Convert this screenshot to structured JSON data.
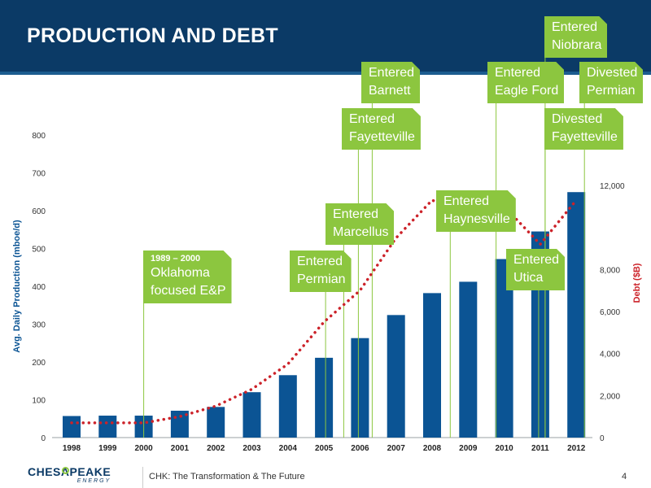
{
  "page": {
    "title": "PRODUCTION AND DEBT",
    "footer": "CHK: The Transformation & The Future",
    "page_number": "4"
  },
  "logo": {
    "name": "CHESAPEAKE",
    "sub": "ENERGY"
  },
  "colors": {
    "header": "#0b3a66",
    "bars": "#0b5494",
    "debt_line": "#cc2229",
    "callout": "#8cc63f",
    "marker_line": "#8cc63f"
  },
  "chart_data": {
    "type": "bar",
    "categories": [
      "1998",
      "1999",
      "2000",
      "2001",
      "2002",
      "2003",
      "2004",
      "2005",
      "2006",
      "2007",
      "2008",
      "2009",
      "2010",
      "2011",
      "2012"
    ],
    "series": [
      {
        "axis": "left",
        "type": "bar",
        "values": [
          57,
          58,
          58,
          71,
          81,
          120,
          165,
          211,
          263,
          324,
          382,
          412,
          472,
          545,
          649
        ]
      },
      {
        "axis": "right",
        "type": "line",
        "style": "dotted",
        "values": [
          700,
          700,
          700,
          1000,
          1500,
          2300,
          3500,
          5500,
          7000,
          9500,
          11300,
          10600,
          11000,
          9200,
          11300
        ]
      }
    ],
    "ylabel": "Avg. Daily Production (mboe/d)",
    "y2label": "Debt ($B)",
    "ylim": [
      0,
      800
    ],
    "y2lim": [
      0,
      14000
    ],
    "yticks": [
      "0",
      "100",
      "200",
      "300",
      "400",
      "500",
      "600",
      "700",
      "800"
    ],
    "y2ticks": [
      "0",
      "2,000",
      "4,000",
      "6,000",
      "8,000",
      "12,000"
    ],
    "grid": false,
    "annotations": [
      {
        "id": "oklahoma",
        "x_year": "2000",
        "header": "1989 – 2000",
        "lines": [
          "Oklahoma",
          "focused E&P"
        ]
      },
      {
        "id": "permian",
        "x_year": "2005",
        "lines": [
          "Entered",
          "Permian"
        ]
      },
      {
        "id": "marcellus",
        "x_year": "2006",
        "lines": [
          "Entered",
          "Marcellus"
        ]
      },
      {
        "id": "fayetteville",
        "x_year": "2006",
        "lines": [
          "Entered",
          "Fayetteville"
        ]
      },
      {
        "id": "barnett",
        "x_year": "2006",
        "lines": [
          "Entered",
          "Barnett"
        ]
      },
      {
        "id": "haynesville",
        "x_year": "2009",
        "lines": [
          "Entered",
          "Haynesville"
        ]
      },
      {
        "id": "eagleford",
        "x_year": "2010",
        "lines": [
          "Entered",
          "Eagle Ford"
        ]
      },
      {
        "id": "utica",
        "x_year": "2011",
        "lines": [
          "Entered",
          "Utica"
        ]
      },
      {
        "id": "niobrara",
        "x_year": "2011",
        "lines": [
          "Entered",
          "Niobrara"
        ]
      },
      {
        "id": "div_permian",
        "x_year": "2012",
        "lines": [
          "Divested",
          "Permian"
        ]
      },
      {
        "id": "div_fayetteville",
        "x_year": "2011",
        "lines": [
          "Divested",
          "Fayetteville"
        ]
      }
    ]
  }
}
